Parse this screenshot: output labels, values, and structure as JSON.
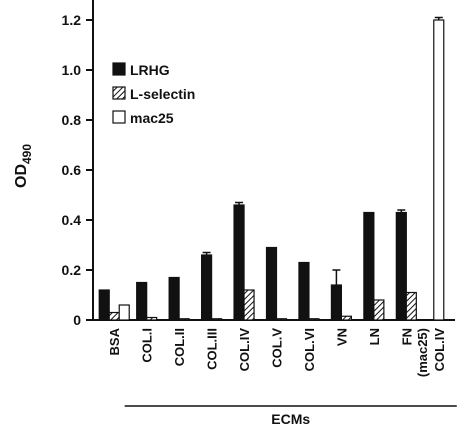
{
  "chart_data": {
    "type": "bar",
    "ylabel_main": "OD",
    "ylabel_sub": "490",
    "ylim": [
      0,
      1.2
    ],
    "yticks": [
      "0",
      "0.2",
      "0.4",
      "0.6",
      "0.8",
      "1.0",
      "1.2"
    ],
    "categories": [
      {
        "line1": "BSA",
        "line2": ""
      },
      {
        "line1": "COL.I",
        "line2": ""
      },
      {
        "line1": "COL.II",
        "line2": ""
      },
      {
        "line1": "COL.III",
        "line2": ""
      },
      {
        "line1": "COL.IV",
        "line2": ""
      },
      {
        "line1": "COL.V",
        "line2": ""
      },
      {
        "line1": "COL.VI",
        "line2": ""
      },
      {
        "line1": "VN",
        "line2": ""
      },
      {
        "line1": "LN",
        "line2": ""
      },
      {
        "line1": "FN",
        "line2": ""
      },
      {
        "line1": "COL.IV",
        "line2": "(mac25)"
      }
    ],
    "series": [
      {
        "name": "LRHG",
        "fill": "solid",
        "values": [
          0.12,
          0.15,
          0.17,
          0.26,
          0.46,
          0.29,
          0.23,
          0.14,
          0.43,
          0.43,
          null
        ],
        "errors": [
          0,
          0,
          0,
          0.01,
          0.01,
          0,
          0,
          0.06,
          0,
          0.01,
          null
        ]
      },
      {
        "name": "L-selectin",
        "fill": "hatched",
        "values": [
          0.03,
          0.01,
          0.005,
          0.005,
          0.12,
          0.005,
          0.005,
          0.015,
          0.08,
          0.11,
          null
        ],
        "errors": [
          0,
          0,
          0,
          0,
          0,
          0,
          0,
          0,
          0,
          0,
          null
        ]
      },
      {
        "name": "mac25",
        "fill": "open",
        "values": [
          0.06,
          null,
          null,
          null,
          null,
          null,
          null,
          null,
          null,
          null,
          1.2
        ],
        "errors": [
          0,
          null,
          null,
          null,
          null,
          null,
          null,
          null,
          null,
          null,
          0.01
        ]
      }
    ],
    "group_label": "ECMs",
    "group_span": [
      "COL.I",
      "COL.IV (mac25)"
    ],
    "legend_position": "upper-left",
    "grid": false
  }
}
